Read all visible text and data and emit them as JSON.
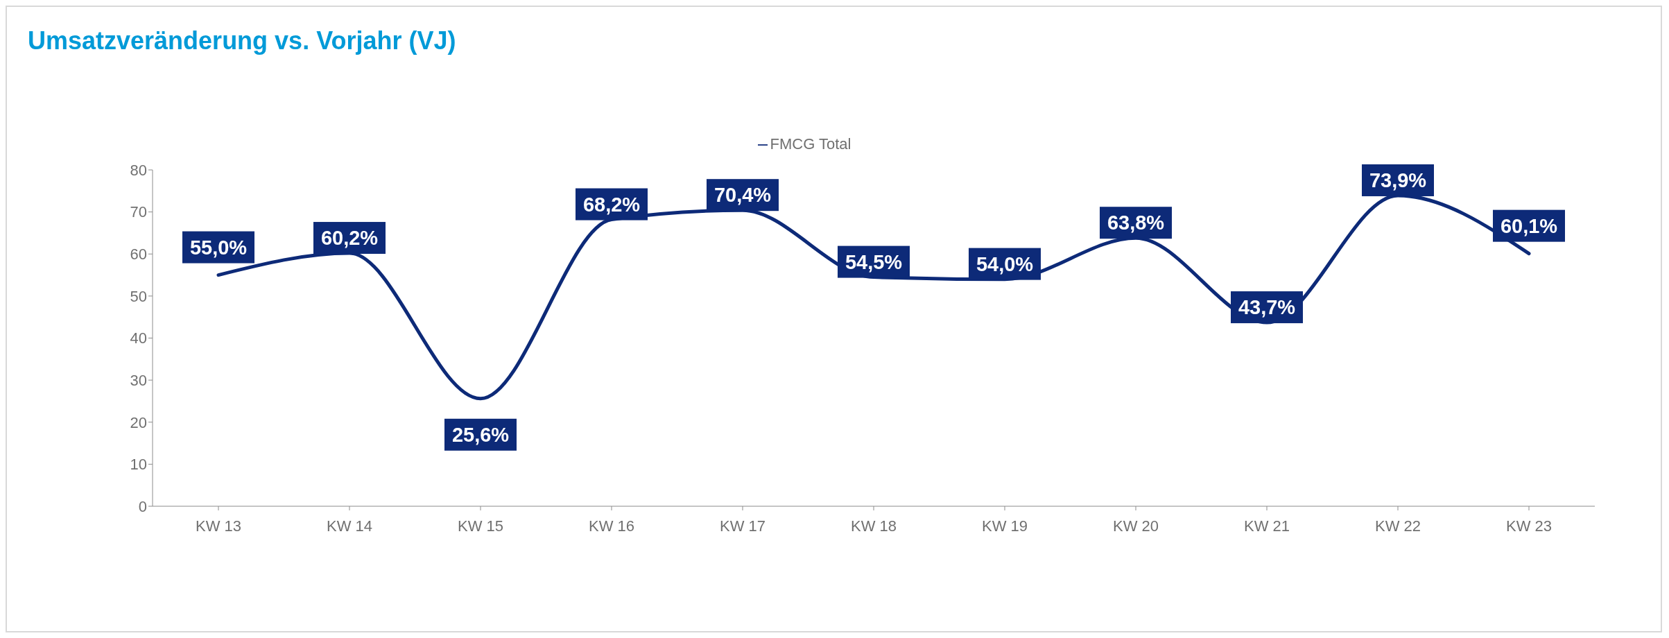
{
  "chart_data": {
    "type": "line",
    "title": "Umsatzveränderung vs. Vorjahr (VJ)",
    "categories": [
      "KW 13",
      "KW 14",
      "KW 15",
      "KW 16",
      "KW 17",
      "KW 18",
      "KW 19",
      "KW 20",
      "KW 21",
      "KW 22",
      "KW 23"
    ],
    "series": [
      {
        "name": "FMCG Total",
        "color": "#0d2a78",
        "values": [
          55.0,
          60.2,
          25.6,
          68.2,
          70.4,
          54.5,
          54.0,
          63.8,
          43.7,
          73.9,
          60.1
        ],
        "value_labels": [
          "55,0%",
          "60,2%",
          "25,6%",
          "68,2%",
          "70,4%",
          "54,5%",
          "54,0%",
          "63,8%",
          "43,7%",
          "73,9%",
          "60,1%"
        ]
      }
    ],
    "ylim": [
      0,
      80
    ],
    "yticks": [
      0,
      10,
      20,
      30,
      40,
      50,
      60,
      70,
      80
    ],
    "grid": false,
    "legend": "top",
    "marker": "none",
    "line_style": "solid"
  }
}
